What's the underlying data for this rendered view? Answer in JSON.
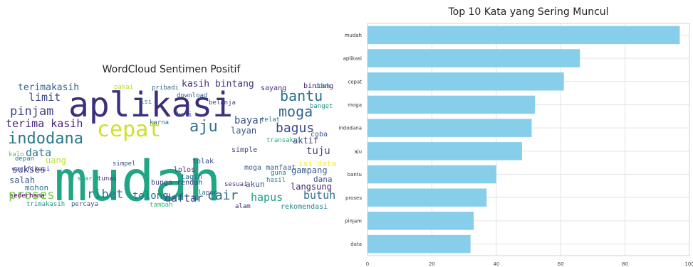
{
  "chart_data": [
    {
      "type": "wordcloud",
      "title": "WordCloud Sentimen Positif",
      "words": [
        {
          "text": "mudah",
          "color": "#21a685"
        },
        {
          "text": "aplikasi",
          "color": "#3b2f7e"
        },
        {
          "text": "cepat",
          "color": "#cfe02a"
        },
        {
          "text": "bantu",
          "color": "#2a6f8e"
        },
        {
          "text": "aju",
          "color": "#2c728e"
        },
        {
          "text": "moga",
          "color": "#32648e"
        },
        {
          "text": "indodana",
          "color": "#2a788e"
        },
        {
          "text": "pinjam",
          "color": "#414487"
        },
        {
          "text": "bagus",
          "color": "#3e4a89"
        },
        {
          "text": "terima kasih",
          "color": "#482878"
        },
        {
          "text": "limit",
          "color": "#3e4c8a"
        },
        {
          "text": "data",
          "color": "#287d8e"
        },
        {
          "text": "proses",
          "color": "#7ad151"
        },
        {
          "text": "ribet",
          "color": "#2a768e"
        },
        {
          "text": "daftar",
          "color": "#3f4788"
        },
        {
          "text": "cair",
          "color": "#31688e"
        },
        {
          "text": "hapus",
          "color": "#1f9a8a"
        },
        {
          "text": "butuh",
          "color": "#2d708e"
        },
        {
          "text": "bayar",
          "color": "#3b528b"
        },
        {
          "text": "tuju",
          "color": "#404387"
        },
        {
          "text": "sukses",
          "color": "#453781"
        },
        {
          "text": "terimakasih",
          "color": "#33638d"
        },
        {
          "text": "tolong",
          "color": "#2e6e8e"
        },
        {
          "text": "kasih bintang",
          "color": "#46337f"
        },
        {
          "text": "aktif",
          "color": "#433e85"
        },
        {
          "text": "layan",
          "color": "#3a548c"
        },
        {
          "text": "langsung",
          "color": "#482475"
        },
        {
          "text": "gampang",
          "color": "#39568c"
        },
        {
          "text": "uang",
          "color": "#bddf26"
        },
        {
          "text": "salah",
          "color": "#38588c"
        },
        {
          "text": "simple",
          "color": "#404688"
        },
        {
          "text": "dana",
          "color": "#3d4e8a"
        },
        {
          "text": "mohon",
          "color": "#2b758e"
        },
        {
          "text": "akun",
          "color": "#3c4f8a"
        },
        {
          "text": "isi data",
          "color": "#fde725"
        },
        {
          "text": "rekomendasi",
          "color": "#23888e"
        },
        {
          "text": "bintang",
          "color": "#481f70"
        },
        {
          "text": "sayang",
          "color": "#472d7b"
        },
        {
          "text": "moga manfaat",
          "color": "#34618d"
        },
        {
          "text": "tagih",
          "color": "#2c718e"
        },
        {
          "text": "lolos",
          "color": "#463480"
        },
        {
          "text": "tolak",
          "color": "#3f4889"
        },
        {
          "text": "kali",
          "color": "#38598c"
        },
        {
          "text": "isi",
          "color": "#25848e"
        },
        {
          "text": "pribadi",
          "color": "#2f6b8e"
        },
        {
          "text": "bunga rendah",
          "color": "#424186"
        },
        {
          "text": "karna",
          "color": "#2d708e"
        },
        {
          "text": "banget",
          "color": "#21918c"
        },
        {
          "text": "trimakasih",
          "color": "#1f968b"
        },
        {
          "text": "tambah",
          "color": "#35b779"
        },
        {
          "text": "percaya",
          "color": "#3b528b"
        },
        {
          "text": "alam",
          "color": "#482677"
        },
        {
          "text": "sederhana",
          "color": "#440154"
        },
        {
          "text": "verifikasi",
          "color": "#3e4989"
        },
        {
          "text": "depan",
          "color": "#2a788e"
        },
        {
          "text": "kalo",
          "color": "#5ec962"
        },
        {
          "text": "syarat",
          "color": "#22a884"
        },
        {
          "text": "guna",
          "color": "#2c728e"
        },
        {
          "text": "pakai",
          "color": "#bade28"
        },
        {
          "text": "download",
          "color": "#32658e"
        },
        {
          "text": "belanja",
          "color": "#414487"
        },
        {
          "text": "telat",
          "color": "#2c738e"
        },
        {
          "text": "transaksi",
          "color": "#27ad81"
        },
        {
          "text": "coba",
          "color": "#3a548c"
        },
        {
          "text": "udah",
          "color": "#1fa187"
        },
        {
          "text": "sesuai",
          "color": "#46307e"
        },
        {
          "text": "lapor",
          "color": "#31678e"
        },
        {
          "text": "tunai",
          "color": "#482374"
        },
        {
          "text": "simpel",
          "color": "#3d4d8a"
        },
        {
          "text": "hasil",
          "color": "#29798e"
        }
      ]
    },
    {
      "type": "bar",
      "orientation": "horizontal",
      "title": "Top 10 Kata yang Sering Muncul",
      "categories": [
        "mudah",
        "aplikasi",
        "cepat",
        "moga",
        "indodana",
        "aju",
        "bantu",
        "proses",
        "pinjam",
        "data"
      ],
      "values": [
        97,
        66,
        61,
        52,
        51,
        48,
        40,
        37,
        33,
        32
      ],
      "xlim": [
        0,
        100
      ],
      "xticks": [
        0,
        20,
        40,
        60,
        80,
        100
      ],
      "bar_color": "#87ceeb",
      "grid": true
    }
  ]
}
